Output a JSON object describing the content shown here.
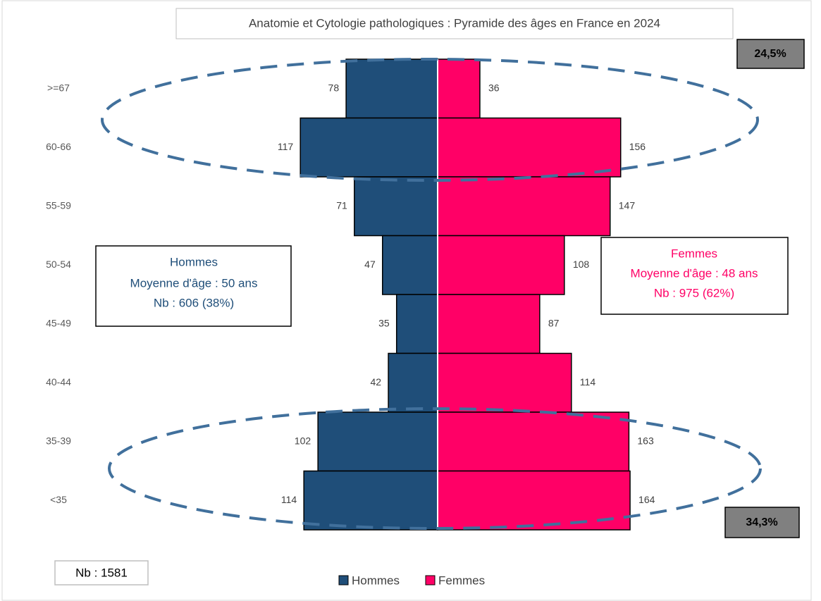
{
  "chart_data": {
    "type": "pyramid",
    "title": "Anatomie et Cytologie pathologiques : Pyramide des âges en France en 2024",
    "categories": [
      ">=67",
      "60-66",
      "55-59",
      "50-54",
      "45-49",
      "40-44",
      "35-39",
      "<35"
    ],
    "series": [
      {
        "name": "Hommes",
        "color": "#1f4e79",
        "values": [
          78,
          117,
          71,
          47,
          35,
          42,
          102,
          114
        ]
      },
      {
        "name": "Femmes",
        "color": "#ff0066",
        "values": [
          36,
          156,
          147,
          108,
          87,
          114,
          163,
          164
        ]
      }
    ],
    "annotations": {
      "top_share": "24,5%",
      "bottom_share": "34,3%",
      "total": "Nb : 1581",
      "hommes_box": [
        "Hommes",
        "Moyenne d'âge : 50 ans",
        "Nb : 606 (38%)"
      ],
      "femmes_box": [
        "Femmes",
        "Moyenne d'âge : 48 ans",
        "Nb : 975 (62%)"
      ]
    }
  }
}
